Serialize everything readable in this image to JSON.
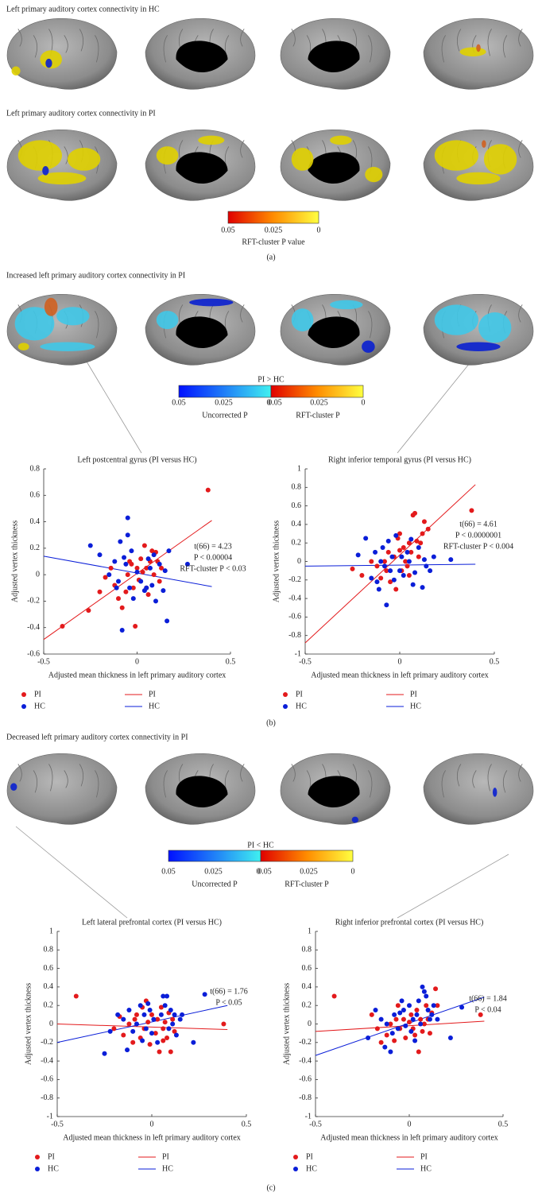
{
  "panel_a": {
    "title_hc": "Left primary auditory cortex connectivity in HC",
    "title_pi": "Left primary auditory cortex connectivity in PI",
    "colorbar": {
      "ticks": [
        0.05,
        0.025,
        0
      ],
      "label": "RFT-cluster P value"
    },
    "tag": "(a)"
  },
  "panel_b": {
    "title": "Increased left primary auditory cortex connectivity in PI",
    "colorbar": {
      "title": "PI > HC",
      "uncorrected": {
        "ticks": [
          0.05,
          0.025,
          0
        ],
        "label": "Uncorrected P"
      },
      "rft": {
        "ticks": [
          0.05,
          0.025,
          0
        ],
        "label": "RFT-cluster P"
      }
    },
    "tag": "(b)"
  },
  "panel_c": {
    "title": "Decreased left primary auditory cortex connectivity in PI",
    "colorbar": {
      "title": "PI < HC",
      "uncorrected": {
        "ticks": [
          0.05,
          0.025,
          0
        ],
        "label": "Uncorrected P"
      },
      "rft": {
        "ticks": [
          0.05,
          0.025,
          0
        ],
        "label": "RFT-cluster P"
      }
    },
    "tag": "(c)"
  },
  "chart_data": [
    {
      "type": "scatter",
      "title": "Left postcentral gyrus (PI versus HC)",
      "xlabel": "Adjusted mean thickness in left primary auditory cortex",
      "ylabel": "Adjusted vertex thickness",
      "xlim": [
        -0.5,
        0.5
      ],
      "ylim": [
        -0.6,
        0.8
      ],
      "xticks": [
        -0.5,
        0,
        0.5
      ],
      "yticks": [
        -0.6,
        -0.4,
        -0.2,
        0,
        0.2,
        0.4,
        0.6,
        0.8
      ],
      "annotation": [
        "t(66) = 4.23",
        "P < 0.00004",
        "RFT-cluster P < 0.03"
      ],
      "series": [
        {
          "name": "PI",
          "color": "#e31a1c",
          "x": [
            -0.4,
            -0.26,
            -0.2,
            -0.17,
            -0.14,
            -0.12,
            -0.1,
            -0.08,
            -0.06,
            -0.05,
            -0.04,
            -0.02,
            0,
            0.01,
            0.02,
            0.03,
            0.04,
            0.05,
            0.06,
            0.07,
            0.08,
            0.09,
            0.1,
            0.11,
            0.12,
            0.13,
            -0.01,
            0.38,
            -0.03,
            0.05
          ],
          "values": [
            -0.39,
            -0.27,
            -0.13,
            -0.02,
            0.05,
            -0.08,
            -0.18,
            -0.25,
            -0.13,
            0,
            0.1,
            -0.1,
            0.05,
            -0.04,
            0.12,
            0.02,
            0.22,
            -0.1,
            -0.15,
            0.1,
            0.18,
            0,
            0.17,
            0.1,
            -0.05,
            0.05,
            -0.39,
            0.64,
            0.08,
            0.05
          ]
        },
        {
          "name": "HC",
          "color": "#0a1ed8",
          "x": [
            -0.25,
            -0.2,
            -0.15,
            -0.12,
            -0.1,
            -0.09,
            -0.08,
            -0.07,
            -0.05,
            -0.05,
            -0.04,
            -0.03,
            -0.02,
            0,
            0.02,
            0.04,
            0.06,
            0.07,
            0.08,
            0.1,
            0.12,
            0.14,
            0.15,
            0.16,
            0.17,
            0.27,
            -0.06,
            0.09,
            0.05,
            -0.11
          ],
          "values": [
            0.22,
            0.15,
            0,
            0.1,
            -0.05,
            0.25,
            -0.42,
            0.13,
            0.43,
            0.3,
            -0.1,
            0.18,
            -0.18,
            0.02,
            -0.05,
            -0.12,
            0.12,
            0.05,
            -0.08,
            -0.2,
            0.08,
            -0.12,
            0.03,
            -0.35,
            0.18,
            0.08,
            0.08,
            0.15,
            -0.1,
            -0.1
          ]
        }
      ],
      "fits": [
        {
          "name": "PI",
          "color": "#e31a1c",
          "x": [
            -0.5,
            0.4
          ],
          "values": [
            -0.49,
            0.41
          ]
        },
        {
          "name": "HC",
          "color": "#0a1ed8",
          "x": [
            -0.5,
            0.4
          ],
          "values": [
            0.14,
            -0.09
          ]
        }
      ]
    },
    {
      "type": "scatter",
      "title": "Right inferior temporal gyrus (PI versus HC)",
      "xlabel": "Adjusted mean thickness in left primary auditory cortex",
      "ylabel": "Adjusted vertex thickness",
      "xlim": [
        -0.5,
        0.5
      ],
      "ylim": [
        -1,
        1
      ],
      "xticks": [
        -0.5,
        0,
        0.5
      ],
      "yticks": [
        -1,
        -0.8,
        -0.6,
        -0.4,
        -0.2,
        0,
        0.2,
        0.4,
        0.6,
        0.8,
        1
      ],
      "annotation": [
        "t(66) = 4.61",
        "P < 0.0000001",
        "RFT-cluster P < 0.004"
      ],
      "series": [
        {
          "name": "PI",
          "color": "#e31a1c",
          "x": [
            -0.25,
            -0.2,
            -0.15,
            -0.12,
            -0.1,
            -0.08,
            -0.06,
            -0.05,
            -0.03,
            -0.02,
            0,
            0,
            0.01,
            0.02,
            0.03,
            0.04,
            0.05,
            0.06,
            0.07,
            0.08,
            0.09,
            0.1,
            0.12,
            0.13,
            0.15,
            0.38,
            -0.07,
            0.05,
            0.11,
            -0.01
          ],
          "values": [
            -0.08,
            -0.15,
            0,
            -0.05,
            -0.18,
            0,
            0.1,
            -0.22,
            0.05,
            -0.3,
            0.12,
            0.3,
            -0.1,
            0.15,
            0,
            -0.05,
            0.2,
            0.1,
            0.5,
            0.52,
            0.22,
            0.05,
            0.3,
            0.43,
            0.35,
            0.55,
            -0.1,
            -0.15,
            0.2,
            0.25
          ]
        },
        {
          "name": "HC",
          "color": "#0a1ed8",
          "x": [
            -0.22,
            -0.18,
            -0.15,
            -0.13,
            -0.11,
            -0.1,
            -0.09,
            -0.08,
            -0.07,
            -0.06,
            -0.05,
            -0.04,
            -0.03,
            -0.02,
            0,
            0.01,
            0.02,
            0.04,
            0.05,
            0.06,
            0.08,
            0.1,
            0.12,
            0.13,
            0.14,
            0.16,
            0.18,
            0.27,
            0.07,
            -0.12
          ],
          "values": [
            0.07,
            0.25,
            -0.18,
            0.1,
            -0.3,
            0,
            0.15,
            -0.05,
            -0.47,
            0.22,
            -0.1,
            0.05,
            -0.2,
            0.28,
            -0.1,
            0.05,
            -0.15,
            0.1,
            0,
            0.24,
            -0.12,
            0.15,
            -0.28,
            0.02,
            -0.05,
            -0.1,
            0.05,
            0.02,
            -0.25,
            -0.22
          ]
        }
      ],
      "fits": [
        {
          "name": "PI",
          "color": "#e31a1c",
          "x": [
            -0.5,
            0.4
          ],
          "values": [
            -0.88,
            0.83
          ]
        },
        {
          "name": "HC",
          "color": "#0a1ed8",
          "x": [
            -0.5,
            0.4
          ],
          "values": [
            -0.05,
            -0.03
          ]
        }
      ]
    },
    {
      "type": "scatter",
      "title": "Left lateral prefrontal cortex (PI versus HC)",
      "xlabel": "Adjusted mean thickness in left primary auditory cortex",
      "ylabel": "Adjusted vertex thickness",
      "xlim": [
        -0.5,
        0.5
      ],
      "ylim": [
        -1,
        1
      ],
      "xticks": [
        -0.5,
        0,
        0.5
      ],
      "yticks": [
        -1,
        -0.8,
        -0.6,
        -0.4,
        -0.2,
        0,
        0.2,
        0.4,
        0.6,
        0.8,
        1
      ],
      "annotation": [
        "t(66) = 1.76",
        "P < 0.05"
      ],
      "series": [
        {
          "name": "PI",
          "color": "#e31a1c",
          "x": [
            -0.4,
            -0.2,
            -0.17,
            -0.15,
            -0.12,
            -0.1,
            -0.08,
            -0.06,
            -0.05,
            -0.04,
            -0.02,
            -0.01,
            0,
            0.02,
            0.03,
            0.04,
            0.05,
            0.06,
            0.07,
            0.08,
            0.09,
            0.1,
            0.11,
            0.12,
            0.38,
            -0.03,
            0.06,
            -0.09
          ],
          "values": [
            0.3,
            -0.05,
            0.08,
            -0.12,
            0,
            -0.2,
            0.1,
            -0.15,
            0.18,
            -0.05,
            0.02,
            -0.22,
            0.1,
            -0.1,
            0.05,
            -0.3,
            0.18,
            -0.05,
            0.02,
            -0.15,
            0.12,
            -0.3,
            0.05,
            -0.08,
            0,
            0.25,
            -0.18,
            0.05
          ]
        },
        {
          "name": "HC",
          "color": "#0a1ed8",
          "x": [
            -0.25,
            -0.22,
            -0.18,
            -0.15,
            -0.13,
            -0.12,
            -0.1,
            -0.08,
            -0.06,
            -0.05,
            -0.04,
            -0.03,
            -0.01,
            0,
            0.01,
            0.03,
            0.05,
            0.06,
            0.07,
            0.08,
            0.09,
            0.1,
            0.11,
            0.12,
            0.13,
            0.15,
            0.22,
            0.28,
            0.16,
            -0.02
          ],
          "values": [
            -0.32,
            -0.08,
            0.1,
            0.05,
            -0.28,
            0.15,
            -0.08,
            0,
            0.2,
            -0.18,
            0.1,
            -0.05,
            0.15,
            -0.1,
            0.05,
            -0.2,
            0.1,
            0.3,
            0.2,
            0.3,
            -0.05,
            0.15,
            0,
            0.1,
            -0.12,
            0.05,
            -0.2,
            0.32,
            0.1,
            0.22
          ]
        }
      ],
      "fits": [
        {
          "name": "PI",
          "color": "#e31a1c",
          "x": [
            -0.5,
            0.4
          ],
          "values": [
            0,
            -0.06
          ]
        },
        {
          "name": "HC",
          "color": "#0a1ed8",
          "x": [
            -0.5,
            0.4
          ],
          "values": [
            -0.2,
            0.2
          ]
        }
      ]
    },
    {
      "type": "scatter",
      "title": "Right inferior prefrontal cortex (PI versus HC)",
      "xlabel": "Adjusted mean thickness in left primary auditory cortex",
      "ylabel": "Adjusted vertex thickness",
      "xlim": [
        -0.5,
        0.5
      ],
      "ylim": [
        -1,
        1
      ],
      "xticks": [
        -0.5,
        0,
        0.5
      ],
      "yticks": [
        -1,
        -0.8,
        -0.6,
        -0.4,
        -0.2,
        0,
        0.2,
        0.4,
        0.6,
        0.8,
        1
      ],
      "annotation": [
        "t(66) = 1.84",
        "P < 0.04"
      ],
      "series": [
        {
          "name": "PI",
          "color": "#e31a1c",
          "x": [
            -0.4,
            -0.2,
            -0.17,
            -0.15,
            -0.12,
            -0.1,
            -0.08,
            -0.06,
            -0.05,
            -0.03,
            -0.02,
            0,
            0.01,
            0.02,
            0.03,
            0.04,
            0.05,
            0.06,
            0.07,
            0.08,
            0.09,
            0.1,
            0.12,
            0.14,
            0.15,
            0.38,
            -0.07,
            0.11
          ],
          "values": [
            0.3,
            0.1,
            -0.05,
            -0.2,
            -0.12,
            0,
            -0.18,
            0.2,
            -0.05,
            0.05,
            -0.15,
            0.02,
            0.1,
            -0.05,
            -0.12,
            0.15,
            -0.3,
            0.05,
            -0.08,
            0,
            0.2,
            0.05,
            0.12,
            0.38,
            0.2,
            0.1,
            0.05,
            -0.1
          ]
        },
        {
          "name": "HC",
          "color": "#0a1ed8",
          "x": [
            -0.22,
            -0.18,
            -0.15,
            -0.13,
            -0.12,
            -0.1,
            -0.09,
            -0.08,
            -0.06,
            -0.05,
            -0.04,
            -0.02,
            0,
            0.02,
            0.04,
            0.05,
            0.06,
            0.07,
            0.08,
            0.09,
            0.1,
            0.11,
            0.12,
            0.13,
            0.15,
            0.22,
            0.28,
            0.03,
            -0.03,
            0.01
          ],
          "values": [
            -0.15,
            0.15,
            0.05,
            -0.25,
            0,
            -0.3,
            -0.1,
            0.1,
            -0.05,
            0.12,
            0.25,
            -0.02,
            0.2,
            0.05,
            0.1,
            0.25,
            0,
            0.4,
            0.35,
            0.3,
            0.15,
            0.05,
            0.1,
            0.2,
            0.05,
            -0.15,
            0.18,
            -0.18,
            0.15,
            -0.08
          ]
        }
      ],
      "fits": [
        {
          "name": "PI",
          "color": "#e31a1c",
          "x": [
            -0.5,
            0.4
          ],
          "values": [
            -0.08,
            0.03
          ]
        },
        {
          "name": "HC",
          "color": "#0a1ed8",
          "x": [
            -0.5,
            0.4
          ],
          "values": [
            -0.34,
            0.29
          ]
        }
      ]
    }
  ]
}
